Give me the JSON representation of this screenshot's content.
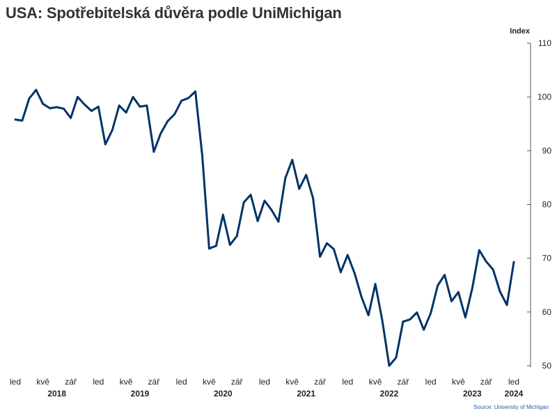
{
  "title": "USA: Spotřebitelská důvěra podle UniMichigan",
  "source": "Source: University of Michigan",
  "colors": {
    "line": "#003366",
    "axis": "#555555",
    "text": "#222222"
  },
  "chart_data": {
    "type": "line",
    "title": "USA: Spotřebitelská důvěra podle UniMichigan",
    "ylabel": "Index",
    "ylim": [
      50,
      110
    ],
    "yticks": [
      50,
      60,
      70,
      80,
      90,
      100,
      110
    ],
    "y_axis_position": "right",
    "grid": false,
    "x_start": "2018-01",
    "x_end": "2024-01",
    "x_tick_labels": [
      {
        "month": "2018-01",
        "label": "led"
      },
      {
        "month": "2018-05",
        "label": "kvě"
      },
      {
        "month": "2018-09",
        "label": "zář"
      },
      {
        "month": "2019-01",
        "label": "led"
      },
      {
        "month": "2019-05",
        "label": "kvě"
      },
      {
        "month": "2019-09",
        "label": "zář"
      },
      {
        "month": "2020-01",
        "label": "led"
      },
      {
        "month": "2020-05",
        "label": "kvě"
      },
      {
        "month": "2020-09",
        "label": "zář"
      },
      {
        "month": "2021-01",
        "label": "led"
      },
      {
        "month": "2021-05",
        "label": "kvě"
      },
      {
        "month": "2021-09",
        "label": "zář"
      },
      {
        "month": "2022-01",
        "label": "led"
      },
      {
        "month": "2022-05",
        "label": "kvě"
      },
      {
        "month": "2022-09",
        "label": "zář"
      },
      {
        "month": "2023-01",
        "label": "led"
      },
      {
        "month": "2023-05",
        "label": "kvě"
      },
      {
        "month": "2023-09",
        "label": "zář"
      },
      {
        "month": "2024-01",
        "label": "led"
      }
    ],
    "year_labels": [
      {
        "month": "2018-07",
        "label": "2018"
      },
      {
        "month": "2019-07",
        "label": "2019"
      },
      {
        "month": "2020-07",
        "label": "2020"
      },
      {
        "month": "2021-07",
        "label": "2021"
      },
      {
        "month": "2022-07",
        "label": "2022"
      },
      {
        "month": "2023-07",
        "label": "2023"
      },
      {
        "month": "2024-01",
        "label": "2024"
      }
    ],
    "series": [
      {
        "values": [
          {
            "x": "2018-01",
            "y": 95.8
          },
          {
            "x": "2018-02",
            "y": 95.6
          },
          {
            "x": "2018-03",
            "y": 99.7
          },
          {
            "x": "2018-04",
            "y": 101.3
          },
          {
            "x": "2018-05",
            "y": 98.7
          },
          {
            "x": "2018-06",
            "y": 97.9
          },
          {
            "x": "2018-07",
            "y": 98.1
          },
          {
            "x": "2018-08",
            "y": 97.8
          },
          {
            "x": "2018-09",
            "y": 96.1
          },
          {
            "x": "2018-10",
            "y": 100.0
          },
          {
            "x": "2018-11",
            "y": 98.6
          },
          {
            "x": "2018-12",
            "y": 97.4
          },
          {
            "x": "2019-01",
            "y": 98.2
          },
          {
            "x": "2019-02",
            "y": 91.2
          },
          {
            "x": "2019-03",
            "y": 93.8
          },
          {
            "x": "2019-04",
            "y": 98.4
          },
          {
            "x": "2019-05",
            "y": 97.1
          },
          {
            "x": "2019-06",
            "y": 100.0
          },
          {
            "x": "2019-07",
            "y": 98.2
          },
          {
            "x": "2019-08",
            "y": 98.4
          },
          {
            "x": "2019-09",
            "y": 89.8
          },
          {
            "x": "2019-10",
            "y": 93.2
          },
          {
            "x": "2019-11",
            "y": 95.5
          },
          {
            "x": "2019-12",
            "y": 96.8
          },
          {
            "x": "2020-01",
            "y": 99.3
          },
          {
            "x": "2020-02",
            "y": 99.8
          },
          {
            "x": "2020-03",
            "y": 101.0
          },
          {
            "x": "2020-04",
            "y": 89.1
          },
          {
            "x": "2020-05",
            "y": 71.8
          },
          {
            "x": "2020-06",
            "y": 72.3
          },
          {
            "x": "2020-07",
            "y": 78.1
          },
          {
            "x": "2020-08",
            "y": 72.5
          },
          {
            "x": "2020-09",
            "y": 74.1
          },
          {
            "x": "2020-10",
            "y": 80.4
          },
          {
            "x": "2020-11",
            "y": 81.8
          },
          {
            "x": "2020-12",
            "y": 76.9
          },
          {
            "x": "2021-01",
            "y": 80.7
          },
          {
            "x": "2021-02",
            "y": 79.0
          },
          {
            "x": "2021-03",
            "y": 76.8
          },
          {
            "x": "2021-04",
            "y": 84.9
          },
          {
            "x": "2021-05",
            "y": 88.3
          },
          {
            "x": "2021-06",
            "y": 82.9
          },
          {
            "x": "2021-07",
            "y": 85.5
          },
          {
            "x": "2021-08",
            "y": 81.2
          },
          {
            "x": "2021-09",
            "y": 70.3
          },
          {
            "x": "2021-10",
            "y": 72.8
          },
          {
            "x": "2021-11",
            "y": 71.7
          },
          {
            "x": "2021-12",
            "y": 67.4
          },
          {
            "x": "2022-01",
            "y": 70.6
          },
          {
            "x": "2022-02",
            "y": 67.2
          },
          {
            "x": "2022-03",
            "y": 62.8
          },
          {
            "x": "2022-04",
            "y": 59.4
          },
          {
            "x": "2022-05",
            "y": 65.2
          },
          {
            "x": "2022-06",
            "y": 58.4
          },
          {
            "x": "2022-07",
            "y": 50.0
          },
          {
            "x": "2022-08",
            "y": 51.5
          },
          {
            "x": "2022-09",
            "y": 58.2
          },
          {
            "x": "2022-10",
            "y": 58.6
          },
          {
            "x": "2022-11",
            "y": 59.9
          },
          {
            "x": "2022-12",
            "y": 56.7
          },
          {
            "x": "2023-01",
            "y": 59.8
          },
          {
            "x": "2023-02",
            "y": 64.9
          },
          {
            "x": "2023-03",
            "y": 66.9
          },
          {
            "x": "2023-04",
            "y": 62.0
          },
          {
            "x": "2023-05",
            "y": 63.7
          },
          {
            "x": "2023-06",
            "y": 59.0
          },
          {
            "x": "2023-07",
            "y": 64.4
          },
          {
            "x": "2023-08",
            "y": 71.5
          },
          {
            "x": "2023-09",
            "y": 69.4
          },
          {
            "x": "2023-10",
            "y": 67.9
          },
          {
            "x": "2023-11",
            "y": 63.8
          },
          {
            "x": "2023-12",
            "y": 61.3
          },
          {
            "x": "2024-01",
            "y": 69.3
          }
        ]
      }
    ]
  }
}
